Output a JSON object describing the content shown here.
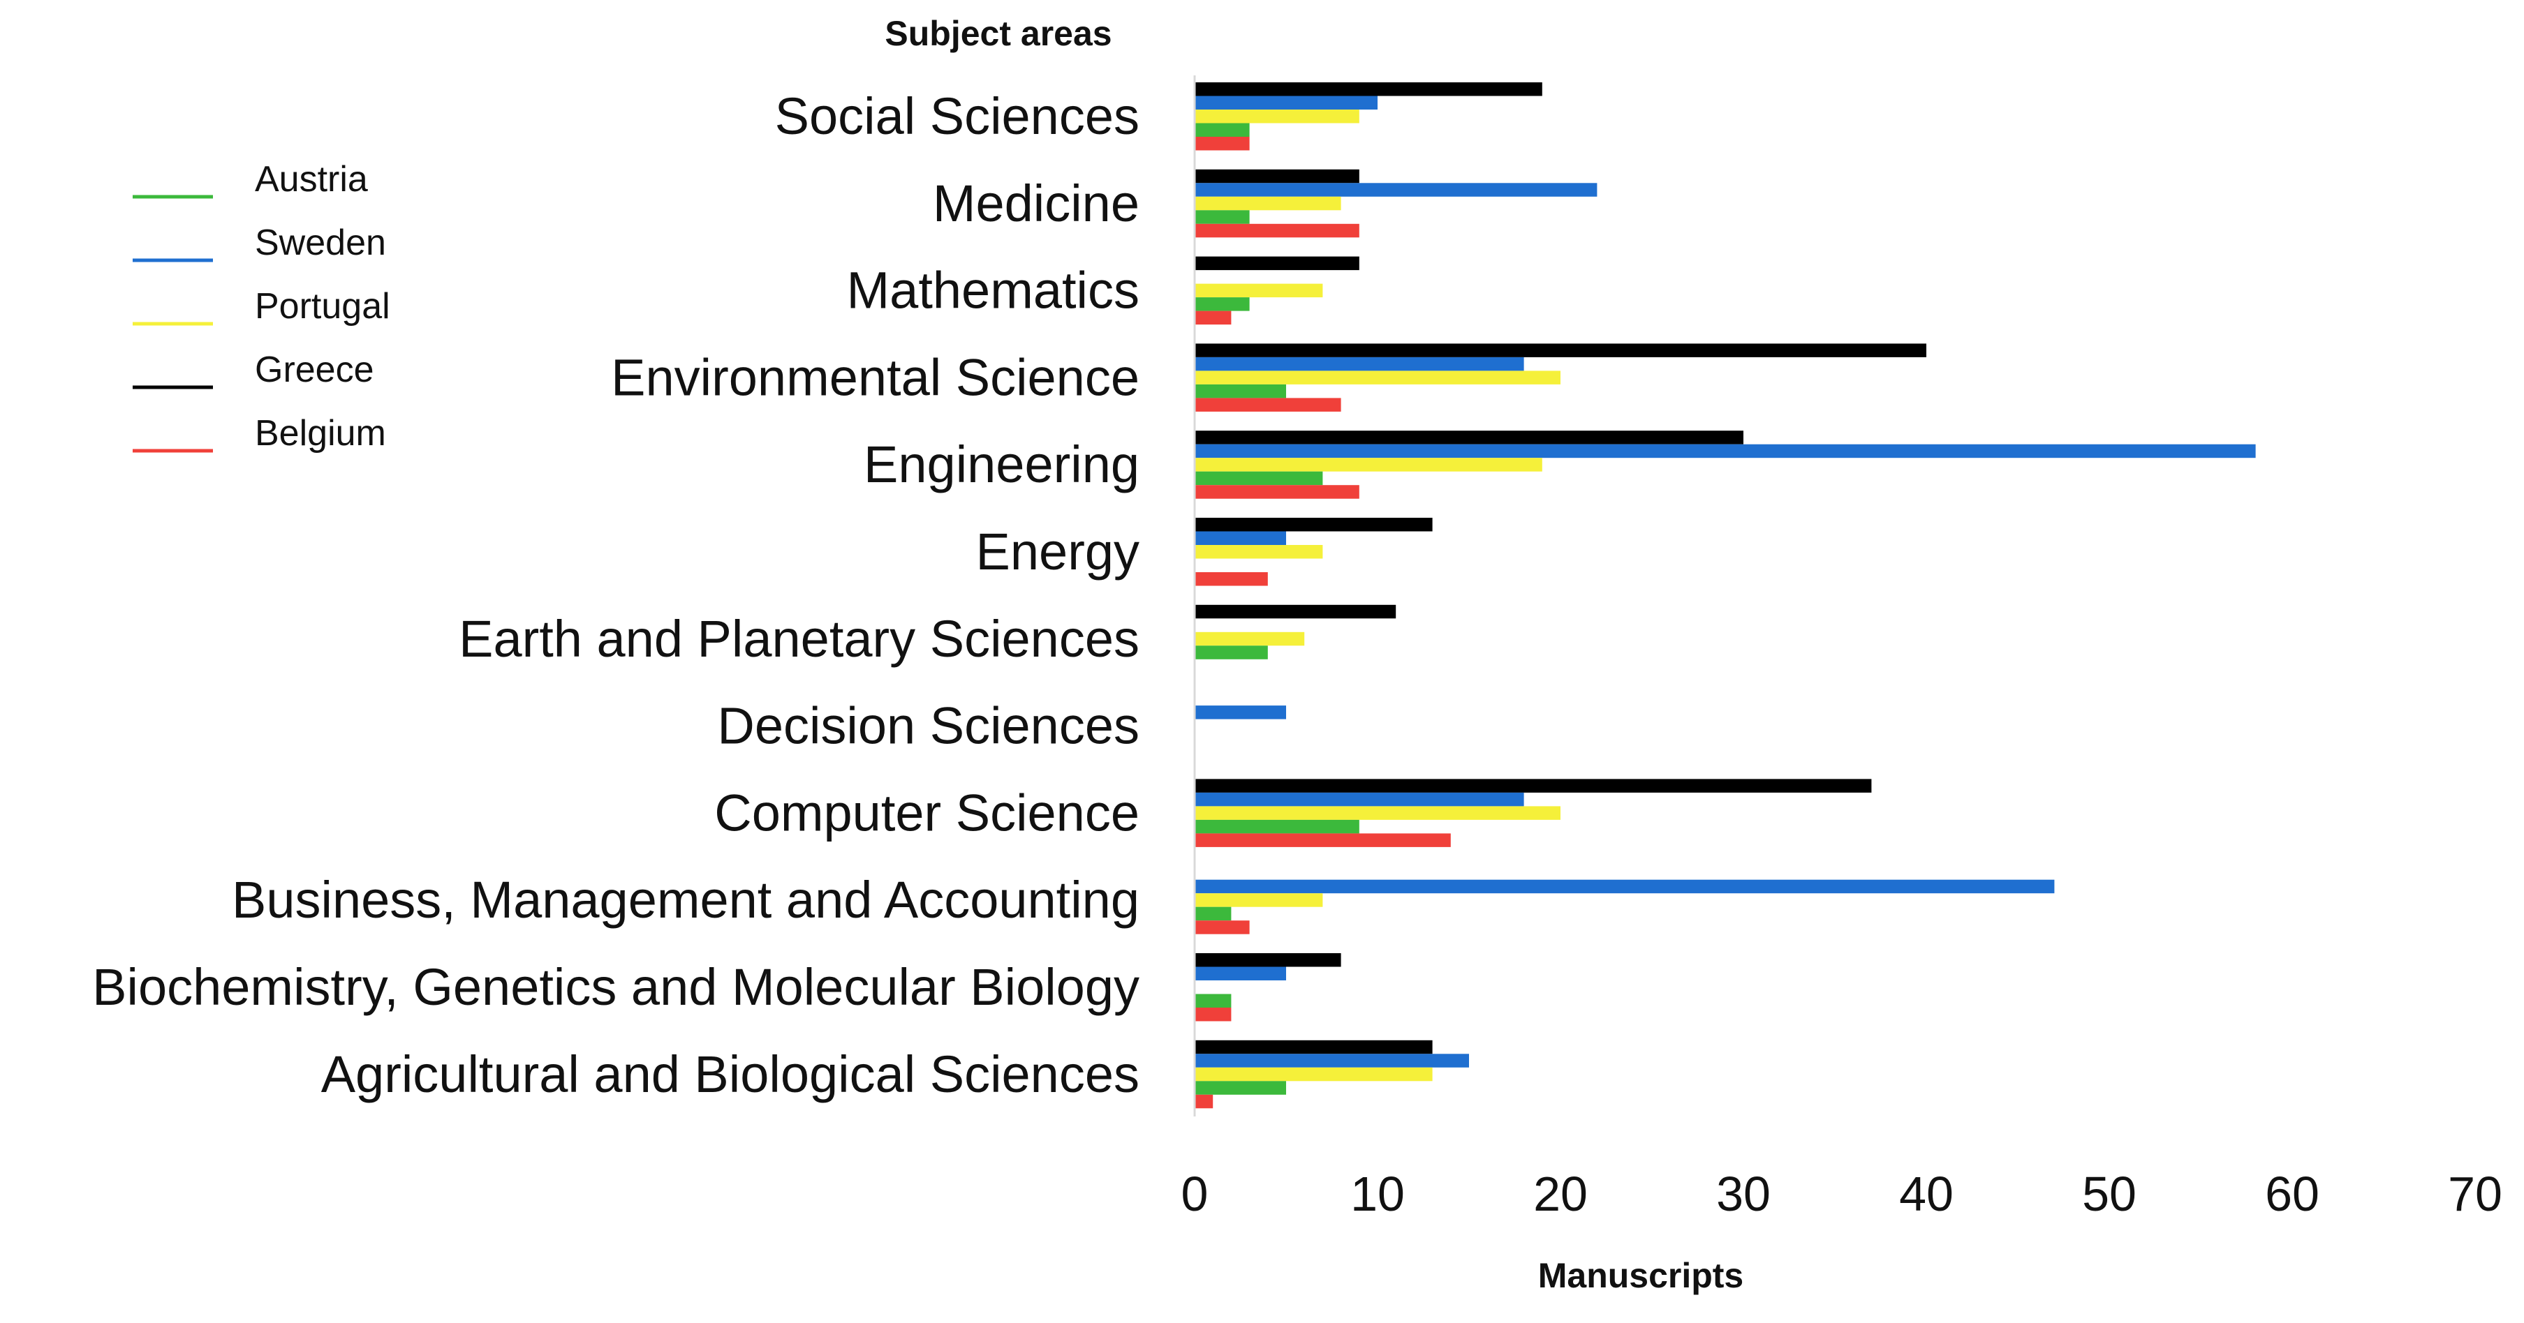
{
  "chart_data": {
    "type": "bar",
    "orientation": "horizontal",
    "title": "Subject areas",
    "ylabel": "Subject areas",
    "xlabel": "Manuscripts",
    "xlim": [
      0,
      70
    ],
    "xticks": [
      0,
      10,
      20,
      30,
      40,
      50,
      60,
      70
    ],
    "grid": false,
    "legend_position": "top-left",
    "categories": [
      "Social Sciences",
      "Medicine",
      "Mathematics",
      "Environmental Science",
      "Engineering",
      "Energy",
      "Earth and Planetary Sciences",
      "Decision Sciences",
      "Computer Science",
      "Business, Management and Accounting",
      "Biochemistry, Genetics and Molecular Biology",
      "Agricultural and Biological Sciences"
    ],
    "series": [
      {
        "name": "Greece",
        "color": "#000000",
        "values": [
          19,
          9,
          9,
          40,
          30,
          13,
          11,
          0,
          37,
          0,
          8,
          13
        ]
      },
      {
        "name": "Sweden",
        "color": "#1f6fd0",
        "values": [
          10,
          22,
          0,
          18,
          58,
          5,
          0,
          5,
          18,
          47,
          5,
          15
        ]
      },
      {
        "name": "Portugal",
        "color": "#f5f03a",
        "values": [
          9,
          8,
          7,
          20,
          19,
          7,
          6,
          0,
          20,
          7,
          0,
          13
        ]
      },
      {
        "name": "Austria",
        "color": "#3cb93c",
        "values": [
          3,
          3,
          3,
          5,
          7,
          0,
          4,
          0,
          9,
          2,
          2,
          5
        ]
      },
      {
        "name": "Belgium",
        "color": "#f0403a",
        "values": [
          3,
          9,
          2,
          8,
          9,
          4,
          0,
          0,
          14,
          3,
          2,
          1
        ]
      }
    ],
    "legend_order": [
      "Austria",
      "Sweden",
      "Portugal",
      "Greece",
      "Belgium"
    ]
  }
}
